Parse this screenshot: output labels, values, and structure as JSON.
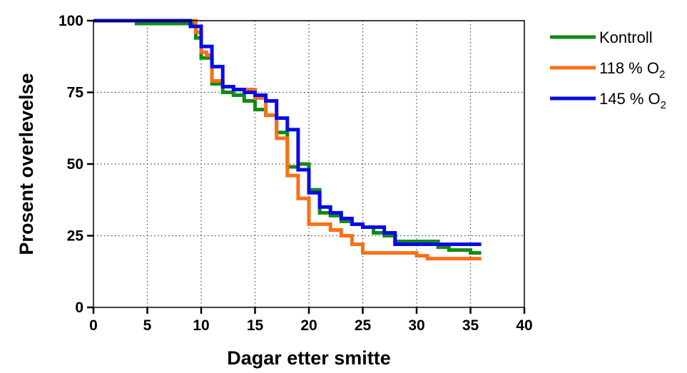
{
  "chart_data": {
    "type": "line",
    "step": true,
    "xlabel": "Dagar etter smitte",
    "ylabel": "Prosent overlevelse",
    "xlim": [
      0,
      40
    ],
    "ylim": [
      0,
      100
    ],
    "xticks": [
      0,
      5,
      10,
      15,
      20,
      25,
      30,
      35,
      40
    ],
    "yticks": [
      0,
      25,
      50,
      75,
      100
    ],
    "grid": true,
    "legend_position": "top-right-outside",
    "series": [
      {
        "name": "Kontroll",
        "color": "#138A13",
        "x": [
          0,
          4,
          9,
          9.5,
          10,
          11,
          12,
          13,
          14,
          15,
          16,
          17,
          18,
          19,
          20,
          21,
          22,
          23,
          24,
          25,
          26,
          27,
          28,
          32,
          33,
          35,
          36
        ],
        "y": [
          100,
          99,
          99,
          94,
          87,
          78,
          75,
          74,
          72,
          69,
          67,
          61,
          49,
          50,
          41,
          33,
          32,
          30,
          29,
          28,
          26,
          25,
          23,
          21,
          20,
          19,
          19
        ]
      },
      {
        "name": "118 % O2",
        "label_main": "118 % O",
        "label_sub": "2",
        "color": "#F87019",
        "x": [
          0,
          9.5,
          10,
          10.5,
          11,
          12,
          13,
          15,
          16,
          17,
          18,
          19,
          20,
          22,
          23,
          24,
          25,
          30,
          31,
          36
        ],
        "y": [
          100,
          96,
          89,
          88,
          79,
          77,
          76,
          73,
          67,
          59,
          46,
          38,
          29,
          27,
          25,
          22,
          19,
          18,
          17,
          17
        ]
      },
      {
        "name": "145 % O2",
        "label_main": "145 % O",
        "label_sub": "2",
        "color": "#0A0AE6",
        "x": [
          0,
          9,
          10,
          11,
          12,
          13,
          14,
          15,
          16,
          17,
          18,
          19,
          20,
          21,
          22,
          23,
          24,
          25,
          26,
          27,
          28,
          32,
          36
        ],
        "y": [
          100,
          98,
          91,
          84,
          77,
          76,
          75,
          74,
          72,
          66,
          62,
          48,
          40,
          35,
          33,
          31,
          29,
          28,
          28,
          26,
          22,
          22,
          22
        ]
      }
    ]
  }
}
